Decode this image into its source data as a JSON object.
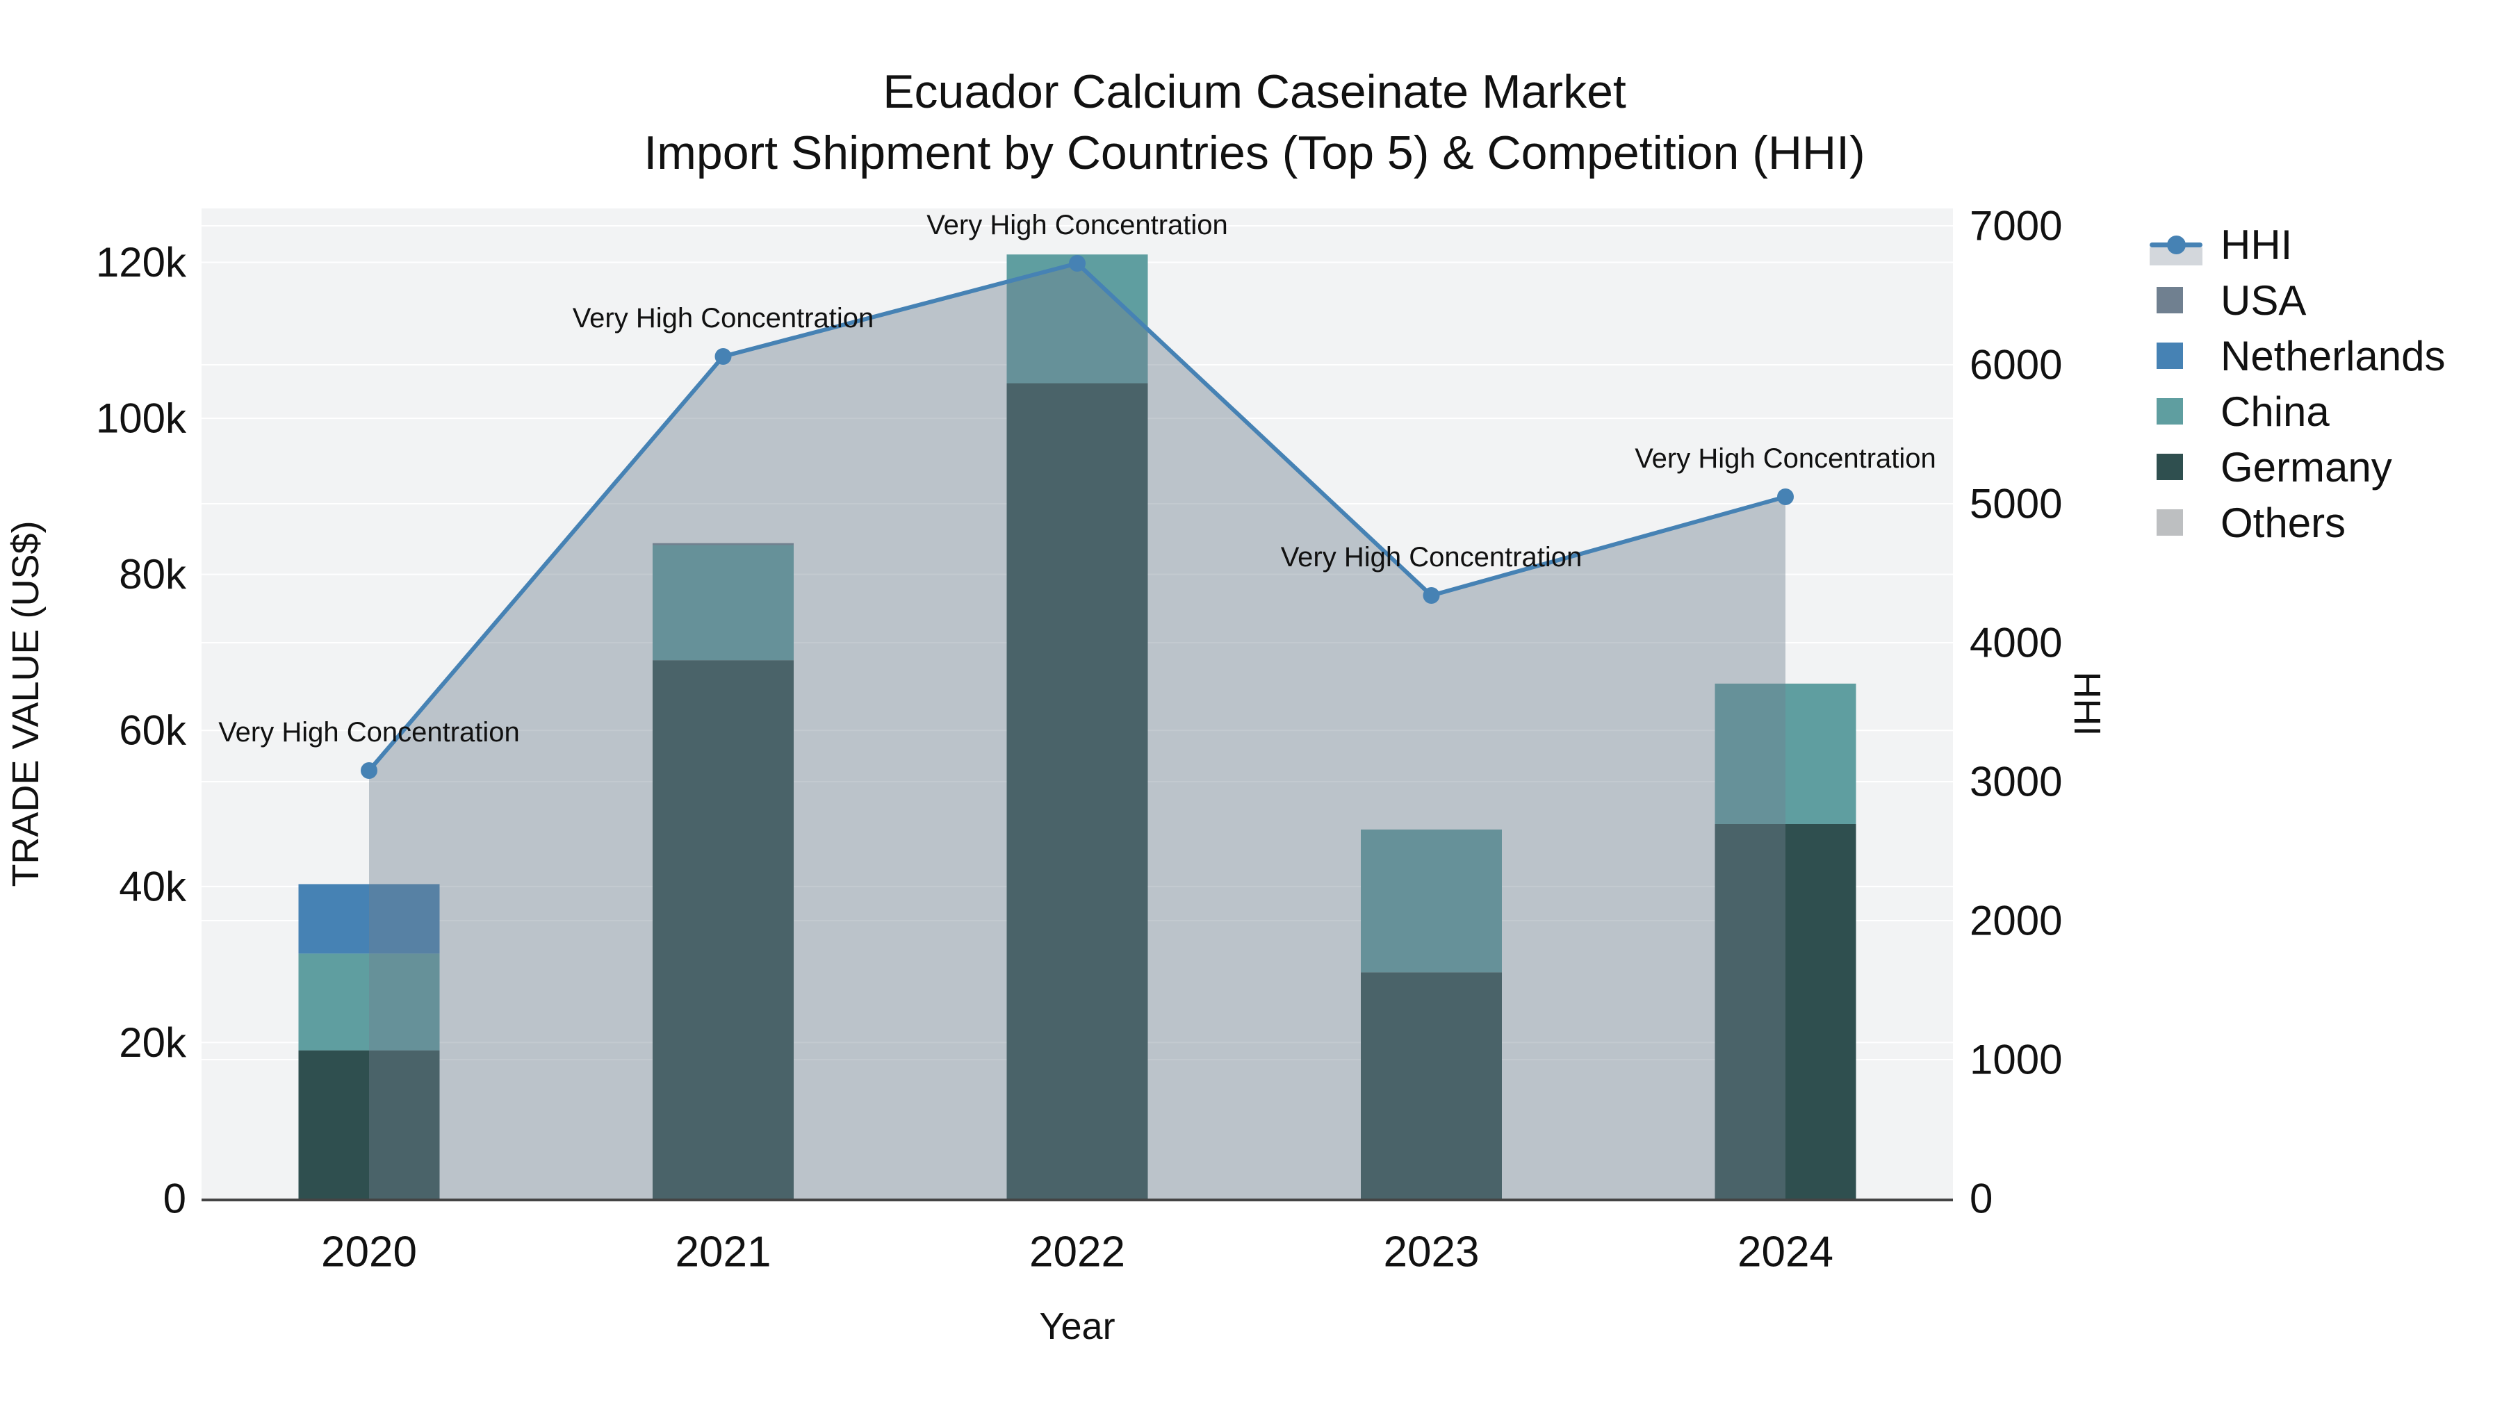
{
  "chart_data": {
    "type": "combo",
    "subtype": "stacked_bar_with_line_and_area",
    "title_line1": "Ecuador Calcium Caseinate Market",
    "title_line2": "Import Shipment by Countries (Top 5) & Competition (HHI)",
    "xlabel": "Year",
    "ylabel_left": "TRADE VALUE (US$)",
    "ylabel_right": "HHI",
    "categories": [
      "2020",
      "2021",
      "2022",
      "2023",
      "2024"
    ],
    "bar_series": [
      {
        "name": "USA",
        "color": "#708090",
        "values": [
          0,
          250,
          0,
          0,
          0
        ]
      },
      {
        "name": "Netherlands",
        "color": "#4682B4",
        "values": [
          8900,
          0,
          0,
          0,
          0
        ]
      },
      {
        "name": "China",
        "color": "#5F9EA0",
        "values": [
          12400,
          14750,
          16500,
          18300,
          18000
        ]
      },
      {
        "name": "Germany",
        "color": "#2F4F4F",
        "values": [
          19000,
          69000,
          104500,
          29000,
          48000
        ]
      },
      {
        "name": "Others",
        "color": "#BDBFC1",
        "values": [
          0,
          0,
          0,
          0,
          0
        ]
      }
    ],
    "stack_bottom_to_top": [
      "Germany",
      "China",
      "Netherlands",
      "USA",
      "Others"
    ],
    "bar_totals": [
      40300,
      84000,
      121000,
      47300,
      66000
    ],
    "line_series": {
      "name": "HHI",
      "axis": "right",
      "color": "#4682B4",
      "area_fill": "rgba(112,128,144,0.42)",
      "values": [
        3080,
        6060,
        6730,
        4340,
        5050
      ]
    },
    "annotations": [
      "Very High Concentration",
      "Very High Concentration",
      "Very High Concentration",
      "Very High Concentration",
      "Very High Concentration"
    ],
    "y_left": {
      "ticks": [
        0,
        20000,
        40000,
        60000,
        80000,
        100000,
        120000
      ],
      "tick_labels": [
        "0",
        "20k",
        "40k",
        "60k",
        "80k",
        "100k",
        "120k"
      ],
      "max": 126900
    },
    "y_right": {
      "ticks": [
        0,
        1000,
        2000,
        3000,
        4000,
        5000,
        6000,
        7000
      ],
      "tick_labels": [
        "0",
        "1000",
        "2000",
        "3000",
        "4000",
        "5000",
        "6000",
        "7000"
      ],
      "max": 7125
    },
    "legend_order": [
      "HHI",
      "USA",
      "Netherlands",
      "China",
      "Germany",
      "Others"
    ],
    "legend_position": "right",
    "grid": "horizontal-major-both-axes",
    "plot_bg": "#F2F3F4",
    "grid_color": "#FFFFFF",
    "axisline_color": "#444444",
    "text_color": "#111111"
  }
}
